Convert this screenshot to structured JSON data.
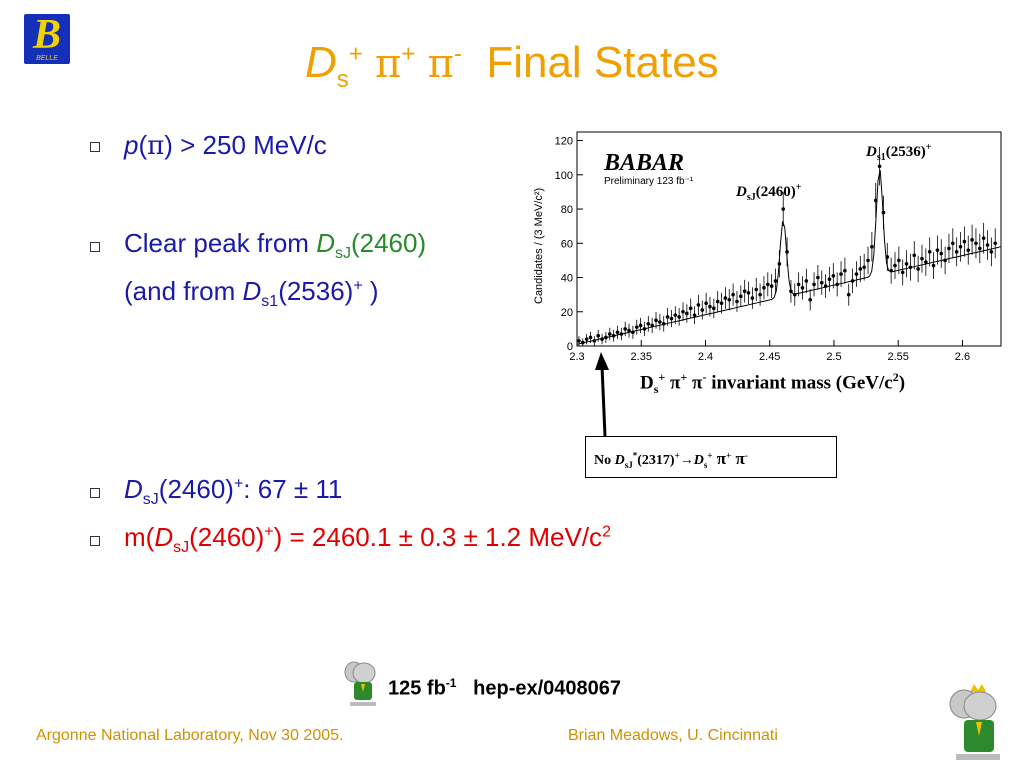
{
  "logo": {
    "letter": "B",
    "wordmark": "BELLE"
  },
  "title": {
    "d": "D",
    "d_sub": "s",
    "d_sup": "+",
    "pi1": "π",
    "pi1_sup": "+",
    "pi2": "π",
    "pi2_sup": "-",
    "text": "Final States"
  },
  "bullets": {
    "b1": {
      "p": "p",
      "open": "(",
      "pi": "π",
      "rest": ") > 250 MeV/c"
    },
    "b2": {
      "pre": "Clear peak from ",
      "d": "D",
      "sub": "sJ",
      "post": "(2460)"
    },
    "b2b": {
      "pre": "(and from ",
      "d": "D",
      "sub": "s1",
      "mid": "(2536)",
      "sup": "+",
      "post": " )"
    },
    "b3": {
      "d": "D",
      "sub": "sJ",
      "mid": "(2460)",
      "sup": "+",
      "post": ": 67 ± 11"
    },
    "b4": {
      "pre": "m(",
      "d": "D",
      "sub": "sJ",
      "mid": "(2460)",
      "sup": "+",
      "post": ") = 2460.1 ± 0.3 ± 1.2 MeV/c",
      "sup2": "2"
    }
  },
  "chart_data": {
    "type": "scatter",
    "experiment_logo": "BABAR",
    "subtitle": "Preliminary 123 fb⁻¹",
    "ylabel": "Candidates / (3 MeV/c²)",
    "xlabel": "Dₛ⁺ π⁺ π⁻ invariant mass (GeV/c²)",
    "xlim": [
      2.3,
      2.63
    ],
    "ylim": [
      0,
      125
    ],
    "x_ticks": [
      "2.3",
      "2.35",
      "2.4",
      "2.45",
      "2.5",
      "2.55",
      "2.6"
    ],
    "y_ticks": [
      "0",
      "20",
      "40",
      "60",
      "80",
      "100",
      "120"
    ],
    "series": [
      {
        "kind": "points",
        "x": [
          2.3015,
          2.3045,
          2.3075,
          2.3105,
          2.3135,
          2.3165,
          2.3195,
          2.3225,
          2.3255,
          2.3285,
          2.3315,
          2.3345,
          2.3375,
          2.3405,
          2.3435,
          2.3465,
          2.3495,
          2.3525,
          2.3555,
          2.3585,
          2.3615,
          2.3645,
          2.3675,
          2.3705,
          2.3735,
          2.3765,
          2.3795,
          2.3825,
          2.3855,
          2.3885,
          2.3915,
          2.3945,
          2.3975,
          2.4005,
          2.4035,
          2.4065,
          2.4095,
          2.4125,
          2.4155,
          2.4185,
          2.4215,
          2.4245,
          2.4275,
          2.4305,
          2.4335,
          2.4365,
          2.4395,
          2.4425,
          2.4455,
          2.4485,
          2.4515,
          2.4545,
          2.4575,
          2.4605,
          2.4635,
          2.4665,
          2.4695,
          2.4725,
          2.4755,
          2.4785,
          2.4815,
          2.4845,
          2.4875,
          2.4905,
          2.4935,
          2.4965,
          2.4995,
          2.5025,
          2.5055,
          2.5085,
          2.5115,
          2.5145,
          2.5175,
          2.5205,
          2.5235,
          2.5265,
          2.5295,
          2.5325,
          2.5355,
          2.5385,
          2.5415,
          2.5445,
          2.5475,
          2.5505,
          2.5535,
          2.5565,
          2.5595,
          2.5625,
          2.5655,
          2.5685,
          2.5715,
          2.5745,
          2.5775,
          2.5805,
          2.5835,
          2.5865,
          2.5895,
          2.5925,
          2.5955,
          2.5985,
          2.6015,
          2.6045,
          2.6075,
          2.6105,
          2.6135,
          2.6165,
          2.6195,
          2.6225,
          2.6255
        ],
        "y": [
          3,
          2,
          4,
          5,
          3,
          6,
          4,
          5,
          7,
          6,
          8,
          7,
          10,
          9,
          8,
          11,
          12,
          10,
          13,
          12,
          15,
          14,
          13,
          17,
          16,
          18,
          17,
          20,
          19,
          22,
          18,
          24,
          21,
          25,
          23,
          22,
          26,
          25,
          28,
          27,
          30,
          26,
          29,
          32,
          31,
          28,
          33,
          30,
          34,
          36,
          35,
          38,
          48,
          80,
          55,
          32,
          30,
          36,
          34,
          38,
          27,
          36,
          40,
          37,
          35,
          39,
          41,
          36,
          42,
          44,
          30,
          38,
          42,
          45,
          46,
          50,
          58,
          85,
          105,
          78,
          52,
          44,
          47,
          50,
          43,
          48,
          46,
          53,
          45,
          51,
          49,
          55,
          47,
          56,
          54,
          50,
          57,
          60,
          55,
          58,
          61,
          56,
          62,
          60,
          57,
          63,
          59,
          55,
          60
        ]
      },
      {
        "kind": "fit",
        "x": [
          2.3,
          2.45,
          2.63
        ],
        "y": [
          1,
          35,
          58
        ]
      }
    ]
  },
  "annotations": {
    "ds1": {
      "d": "D",
      "sub": "s1",
      "mid": "(2536)",
      "sup": "+"
    },
    "dsj": {
      "d": "D",
      "sub": "sJ",
      "mid": "(2460)",
      "sup": "+"
    }
  },
  "xaxis_title": {
    "d": "D",
    "d_sub": "s",
    "d_sup": "+",
    "pi1": " π",
    "pi1_sup": "+",
    "pi2": " π",
    "pi2_sup": "-",
    "rest": " invariant mass (GeV/c",
    "c_sup": "2",
    "close": ")"
  },
  "nobox": {
    "no": "No ",
    "d": "D",
    "sub": "sJ",
    "sup": "*",
    "mid": "(2317)",
    "sup2": "+",
    "arrow": "→",
    "d2": "D",
    "sub2": "s",
    "sup3": "+",
    "pi1": " π",
    "pi1_sup": "+",
    "pi2": " π",
    "pi2_sup": "-"
  },
  "reference": {
    "lumi": "125 fb",
    "lumi_sup": "-1",
    "arxiv": "hep-ex/0408067"
  },
  "footer": {
    "left": "Argonne National Laboratory, Nov 30 2005.",
    "right": "Brian Meadows, U. Cincinnati"
  },
  "colors": {
    "title": "#f0a000",
    "body": "#1a1aa8",
    "green": "#2a8a2a",
    "red": "#e00000",
    "footer": "#d09000"
  }
}
